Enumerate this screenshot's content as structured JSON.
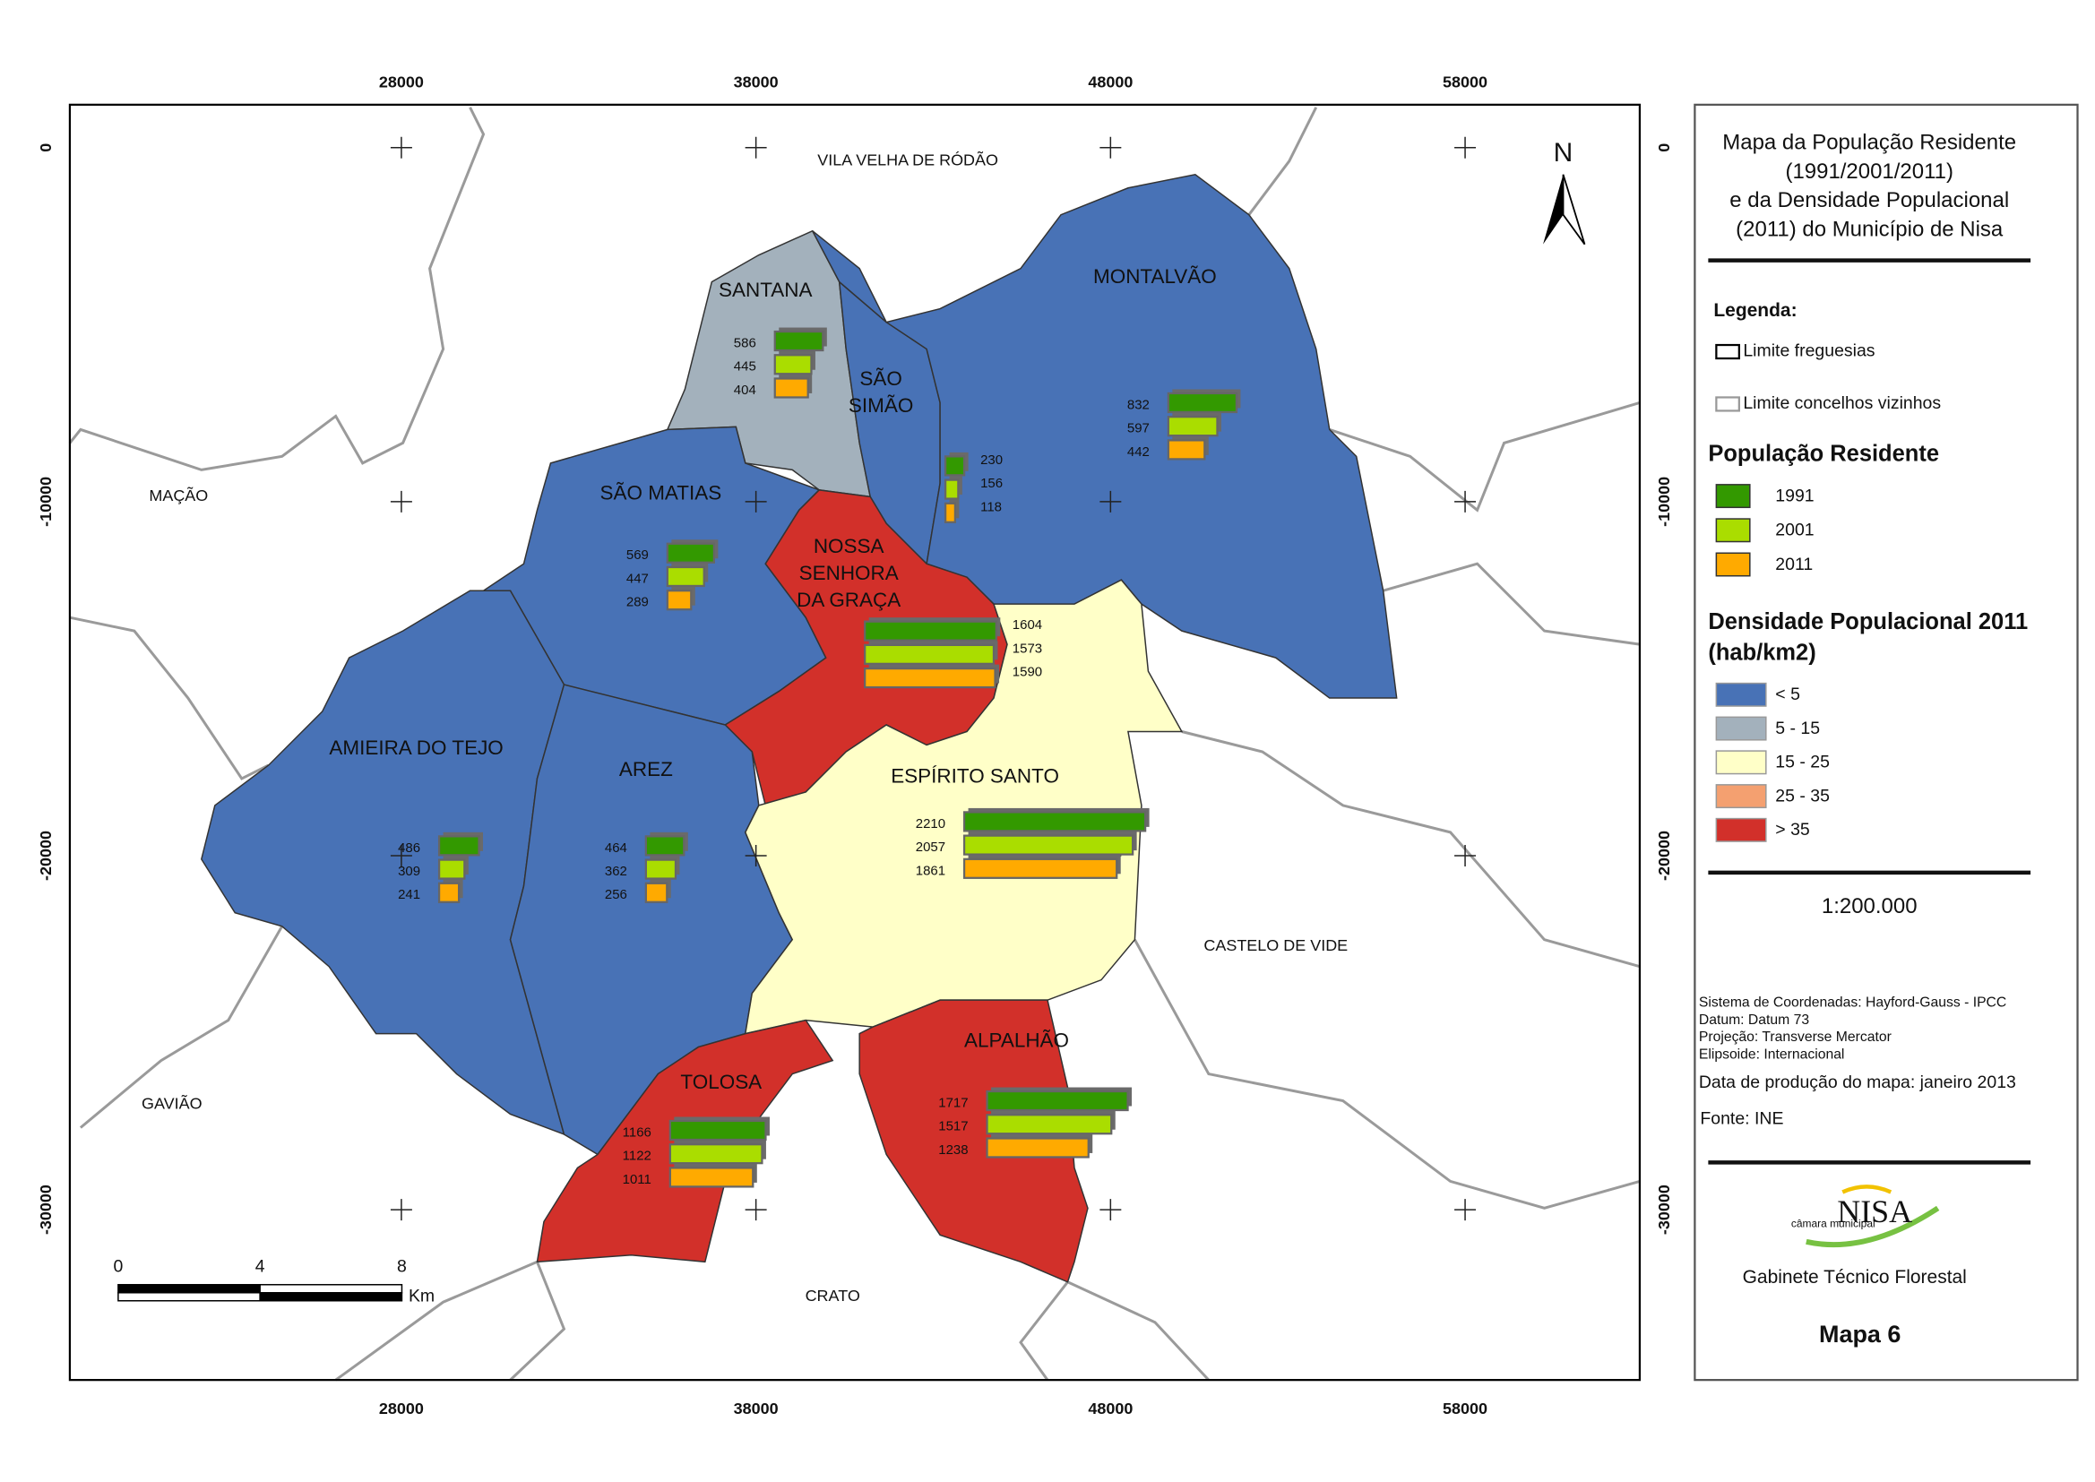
{
  "map": {
    "xlim": [
      18650,
      62925
    ],
    "ylim": [
      -34810,
      1212
    ],
    "xticks": [
      28000,
      38000,
      48000,
      58000
    ],
    "yticks": [
      0,
      -10000,
      -20000,
      -30000
    ],
    "north": "N",
    "scale_bar": {
      "ticks": [
        0,
        4,
        8
      ],
      "unit": "Km"
    },
    "neighbors": [
      "VILA VELHA DE RÓDÃO",
      "MAÇÃO",
      "GAVIÃO",
      "CRATO",
      "CASTELO DE VIDE"
    ],
    "parishes": [
      {
        "name": [
          "SANTANA"
        ],
        "color": "#a3b1bc",
        "values": [
          586,
          445,
          404
        ]
      },
      {
        "name": [
          "SÃO",
          "SIMÃO"
        ],
        "color": "#4872b6",
        "values": [
          230,
          156,
          118
        ]
      },
      {
        "name": [
          "MONTALVÃO"
        ],
        "color": "#4872b6",
        "values": [
          832,
          597,
          442
        ]
      },
      {
        "name": [
          "SÃO MATIAS"
        ],
        "color": "#4872b6",
        "values": [
          569,
          447,
          289
        ]
      },
      {
        "name": [
          "NOSSA",
          "SENHORA",
          "DA GRAÇA"
        ],
        "color": "#d2302a",
        "values": [
          1604,
          1573,
          1590
        ]
      },
      {
        "name": [
          "AMIEIRA DO TEJO"
        ],
        "color": "#4872b6",
        "values": [
          486,
          309,
          241
        ]
      },
      {
        "name": [
          "AREZ"
        ],
        "color": "#4872b6",
        "values": [
          464,
          362,
          256
        ]
      },
      {
        "name": [
          "ESPÍRITO SANTO"
        ],
        "color": "#ffffc8",
        "values": [
          2210,
          2057,
          1861
        ]
      },
      {
        "name": [
          "TOLOSA"
        ],
        "color": "#d2302a",
        "values": [
          1166,
          1122,
          1011
        ]
      },
      {
        "name": [
          "ALPALHÃO"
        ],
        "color": "#d2302a",
        "values": [
          1717,
          1517,
          1238
        ]
      }
    ]
  },
  "legend": {
    "title": [
      "Mapa da População Residente",
      "(1991/2001/2011)",
      "e da Densidade Populacional",
      "(2011) do Município de Nisa"
    ],
    "heading": "Legenda:",
    "boundaries": [
      "Limite freguesias",
      "Limite concelhos vizinhos"
    ],
    "population": {
      "title": "População Residente",
      "series": [
        {
          "name": "1991",
          "color": "#339900"
        },
        {
          "name": "2001",
          "color": "#aadd00"
        },
        {
          "name": "2011",
          "color": "#ffaa00"
        }
      ]
    },
    "density": {
      "title": [
        "Densidade Populacional 2011",
        "(hab/km2)"
      ],
      "classes": [
        {
          "label": "< 5",
          "color": "#4872b6"
        },
        {
          "label": "5 - 15",
          "color": "#a3b1bc"
        },
        {
          "label": "15 - 25",
          "color": "#ffffc8"
        },
        {
          "label": "25 - 35",
          "color": "#f4a070"
        },
        {
          "label": "> 35",
          "color": "#d2302a"
        }
      ]
    },
    "scale": "1:200.000",
    "coordinates": [
      "Sistema de Coordenadas: Hayford-Gauss - IPCC",
      "Datum: Datum 73",
      "Projeção: Transverse Mercator",
      "Elipsoide: Internacional"
    ],
    "date": "Data de produção do mapa: janeiro 2013",
    "source": "Fonte: INE",
    "logo": {
      "small": "câmara municipal",
      "big": "NISA"
    },
    "office": "Gabinete Técnico Florestal",
    "map_number": "Mapa 6"
  }
}
